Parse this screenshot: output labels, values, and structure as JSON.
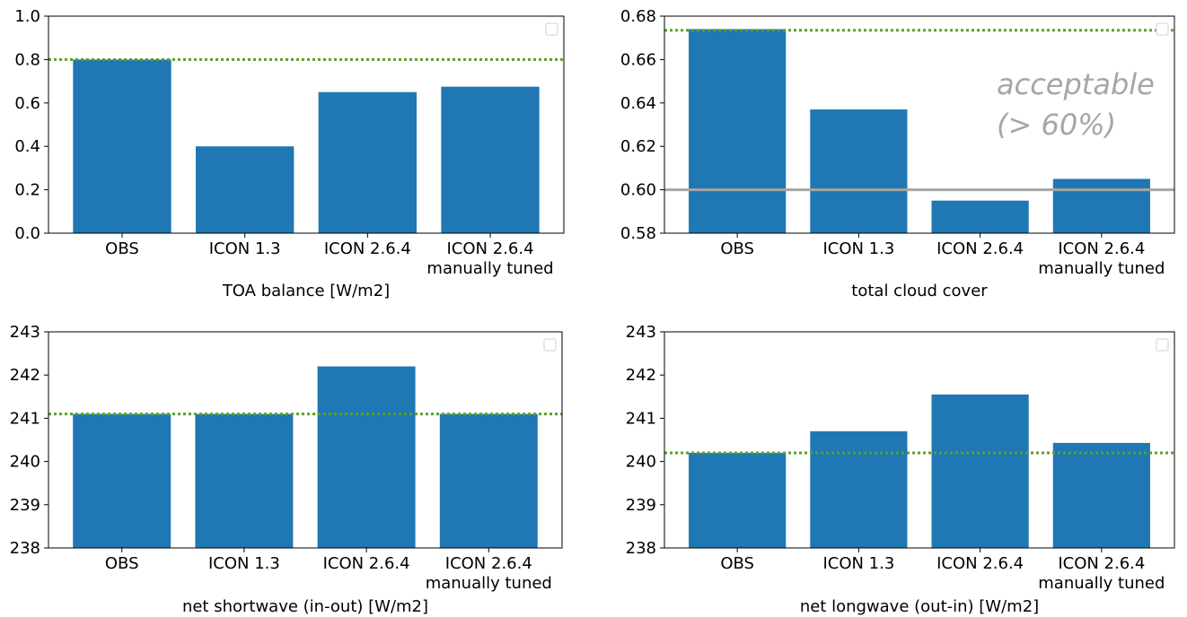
{
  "colors": {
    "bar": "#1f77b4",
    "obs_line": "#5aa02c",
    "threshold_line": "#a6a6a6",
    "annotation_text": "#a6a6a6",
    "axis": "#000000",
    "legend_box": "#d9d9d9"
  },
  "chart_data": [
    {
      "type": "bar",
      "title": "",
      "xlabel": "TOA balance [W/m2]",
      "ylabel": "",
      "categories": [
        "OBS",
        "ICON 1.3",
        "ICON 2.6.4",
        "ICON 2.6.4\nmanually tuned"
      ],
      "values": [
        0.8,
        0.4,
        0.65,
        0.675
      ],
      "ylim": [
        0.0,
        1.0
      ],
      "yticks": [
        "0.0",
        "0.2",
        "0.4",
        "0.6",
        "0.8",
        "1.0"
      ],
      "reference_line": {
        "value": 0.8,
        "style": "dotted",
        "color": "#5aa02c"
      },
      "legend": "top-right (empty)",
      "grid": false
    },
    {
      "type": "bar",
      "title": "",
      "xlabel": "total cloud cover",
      "ylabel": "",
      "categories": [
        "OBS",
        "ICON 1.3",
        "ICON 2.6.4",
        "ICON 2.6.4\nmanually tuned"
      ],
      "values": [
        0.674,
        0.637,
        0.595,
        0.605
      ],
      "ylim": [
        0.58,
        0.68
      ],
      "yticks": [
        "0.58",
        "0.60",
        "0.62",
        "0.64",
        "0.66",
        "0.68"
      ],
      "reference_line": {
        "value": 0.6735,
        "style": "dotted",
        "color": "#5aa02c"
      },
      "threshold_line": {
        "value": 0.6,
        "style": "solid",
        "color": "#a6a6a6"
      },
      "annotation": [
        "acceptable",
        "(> 60%)"
      ],
      "legend": "top-right (empty)",
      "grid": false
    },
    {
      "type": "bar",
      "title": "",
      "xlabel": "net shortwave (in-out) [W/m2]",
      "ylabel": "",
      "categories": [
        "OBS",
        "ICON 1.3",
        "ICON 2.6.4",
        "ICON 2.6.4\nmanually tuned"
      ],
      "values": [
        241.1,
        241.1,
        242.2,
        241.1
      ],
      "ylim": [
        238,
        243
      ],
      "yticks": [
        "238",
        "239",
        "240",
        "241",
        "242",
        "243"
      ],
      "reference_line": {
        "value": 241.1,
        "style": "dotted",
        "color": "#5aa02c"
      },
      "legend": "top-right (empty)",
      "grid": false
    },
    {
      "type": "bar",
      "title": "",
      "xlabel": "net longwave (out-in) [W/m2]",
      "ylabel": "",
      "categories": [
        "OBS",
        "ICON 1.3",
        "ICON 2.6.4",
        "ICON 2.6.4\nmanually tuned"
      ],
      "values": [
        240.2,
        240.7,
        241.55,
        240.43
      ],
      "ylim": [
        238,
        243
      ],
      "yticks": [
        "238",
        "239",
        "240",
        "241",
        "242",
        "243"
      ],
      "reference_line": {
        "value": 240.2,
        "style": "dotted",
        "color": "#5aa02c"
      },
      "legend": "top-right (empty)",
      "grid": false
    }
  ]
}
